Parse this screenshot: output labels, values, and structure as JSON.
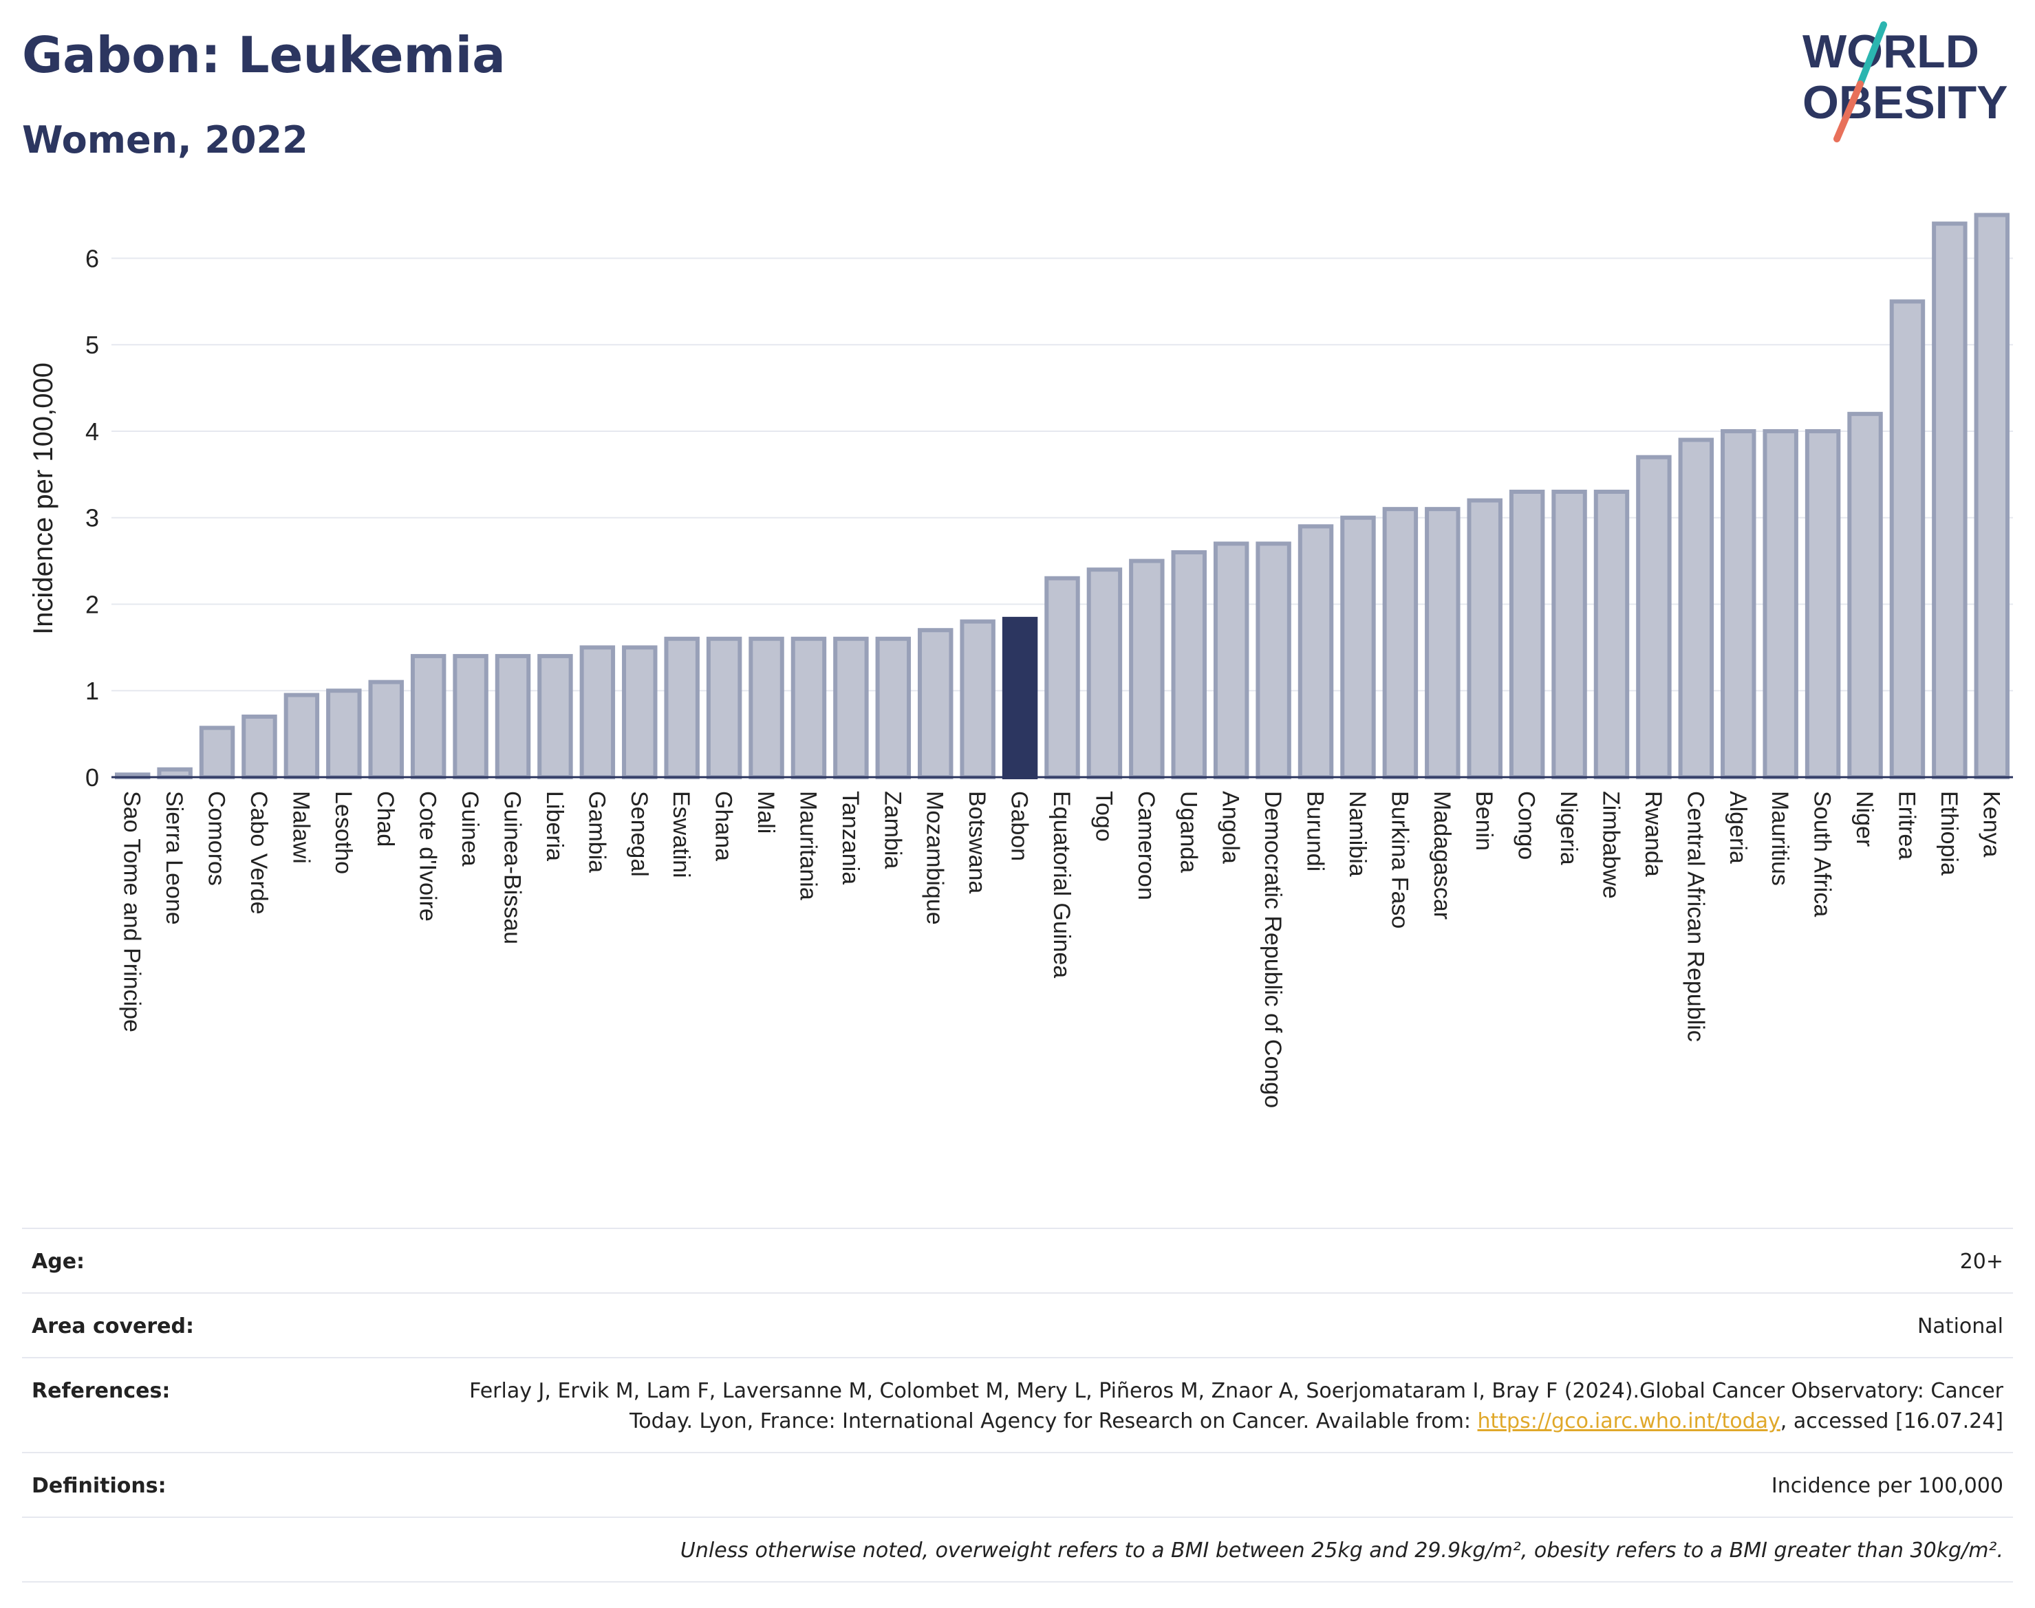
{
  "header": {
    "title": "Gabon: Leukemia",
    "subtitle": "Women, 2022"
  },
  "logo": {
    "line1": "WORLD",
    "line2": "OBESITY",
    "colors": {
      "text": "#2c3660",
      "slash_top": "#2bb5b0",
      "slash_bottom": "#e8705a"
    }
  },
  "chart_data": {
    "type": "bar",
    "ylabel": "Incidence per 100,000",
    "xlabel": "",
    "ylim": [
      0,
      6.6
    ],
    "yticks": [
      0,
      1,
      2,
      3,
      4,
      5,
      6
    ],
    "grid": true,
    "highlight": "Gabon",
    "colors": {
      "bar": "#bfc3d1",
      "bar_border": "#98a0b8",
      "highlight": "#2c3660",
      "grid": "#e6e8ef",
      "axis": "#2c3660"
    },
    "categories": [
      "Sao Tome and Principe",
      "Sierra Leone",
      "Comoros",
      "Cabo Verde",
      "Malawi",
      "Lesotho",
      "Chad",
      "Cote d'Ivoire",
      "Guinea",
      "Guinea-Bissau",
      "Liberia",
      "Gambia",
      "Senegal",
      "Eswatini",
      "Ghana",
      "Mali",
      "Mauritania",
      "Tanzania",
      "Zambia",
      "Mozambique",
      "Botswana",
      "Gabon",
      "Equatorial Guinea",
      "Togo",
      "Cameroon",
      "Uganda",
      "Angola",
      "Democratic Republic of Congo",
      "Burundi",
      "Namibia",
      "Burkina Faso",
      "Madagascar",
      "Benin",
      "Congo",
      "Nigeria",
      "Zimbabwe",
      "Rwanda",
      "Central African Republic",
      "Algeria",
      "Mauritius",
      "South Africa",
      "Niger",
      "Eritrea",
      "Ethiopia",
      "Kenya"
    ],
    "values": [
      0.03,
      0.09,
      0.57,
      0.7,
      0.95,
      1.0,
      1.1,
      1.4,
      1.4,
      1.4,
      1.4,
      1.5,
      1.5,
      1.6,
      1.6,
      1.6,
      1.6,
      1.6,
      1.6,
      1.7,
      1.8,
      1.83,
      2.3,
      2.4,
      2.5,
      2.6,
      2.7,
      2.7,
      2.9,
      3.0,
      3.1,
      3.1,
      3.2,
      3.3,
      3.3,
      3.3,
      3.7,
      3.9,
      4.0,
      4.0,
      4.0,
      4.2,
      5.5,
      6.4,
      6.5
    ]
  },
  "info": {
    "age_label": "Age:",
    "age_value": "20+",
    "area_label": "Area covered:",
    "area_value": "National",
    "references_label": "References:",
    "references_text_1": "Ferlay J, Ervik M, Lam F, Laversanne M, Colombet M, Mery L, Piñeros M, Znaor A, Soerjomataram I, Bray F (2024).Global Cancer Observatory: Cancer Today. Lyon, France: International Agency for Research on Cancer. Available from: ",
    "references_link": "https://gco.iarc.who.int/today",
    "references_text_2": ", accessed [16.07.24]",
    "definitions_label": "Definitions:",
    "definitions_value": "Incidence per 100,000",
    "note": "Unless otherwise noted, overweight refers to a BMI between 25kg and 29.9kg/m², obesity refers to a BMI greater than 30kg/m²."
  }
}
